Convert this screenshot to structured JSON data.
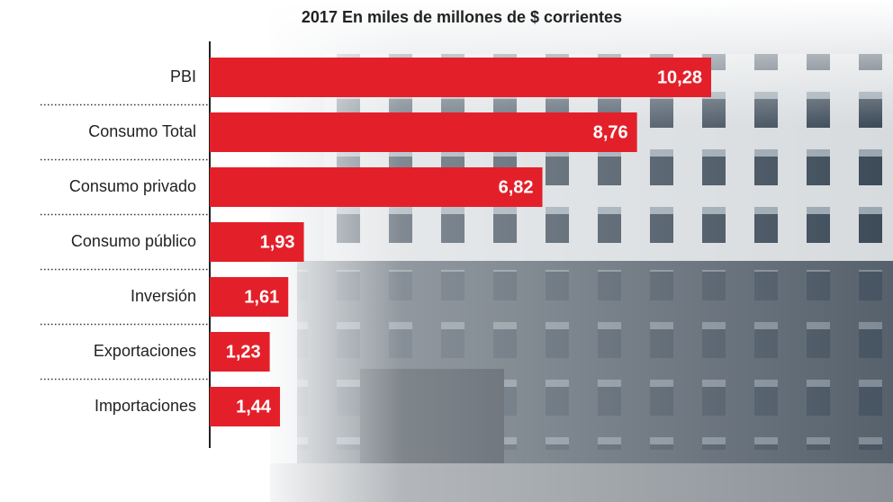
{
  "chart_data": {
    "type": "hbar",
    "title": "2017 En miles de millones de $ corrientes",
    "categories": [
      "PBI",
      "Consumo Total",
      "Consumo privado",
      "Consumo público",
      "Inversión",
      "Exportaciones",
      "Importaciones"
    ],
    "values": [
      10.28,
      8.76,
      6.82,
      1.93,
      1.61,
      1.23,
      1.44
    ],
    "value_labels": [
      "10,28",
      "8,76",
      "6,82",
      "1,93",
      "1,61",
      "1,23",
      "1,44"
    ],
    "color": "#e3202a"
  }
}
